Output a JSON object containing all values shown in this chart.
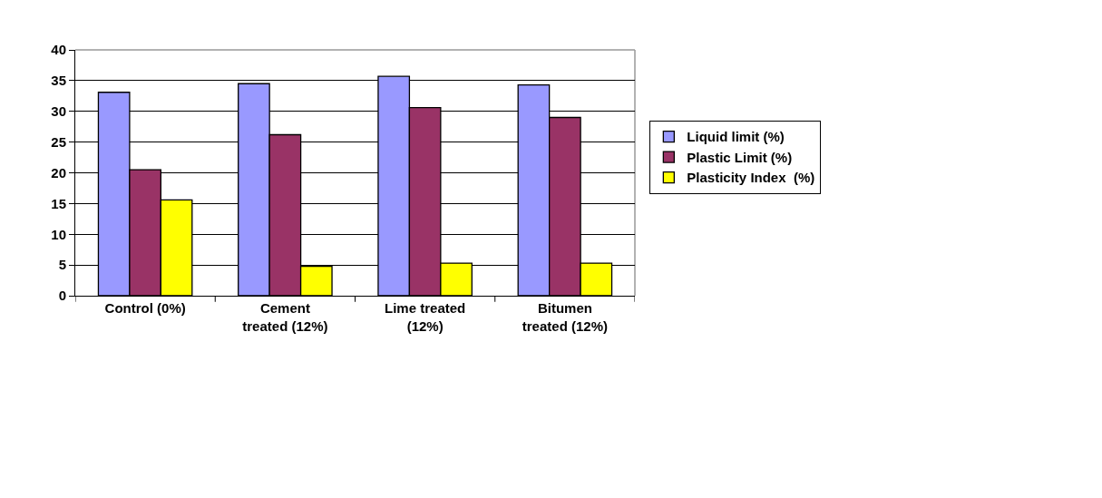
{
  "chart_data": {
    "type": "bar",
    "categories": [
      "Control (0%)",
      "Cement treated (12%)",
      "Lime treated (12%)",
      "Bitumen treated (12%)"
    ],
    "series": [
      {
        "name": "Liquid limit (%)",
        "color": "#9999ff",
        "values": [
          33.1,
          34.5,
          35.7,
          34.3
        ]
      },
      {
        "name": "Plastic Limit (%)",
        "color": "#993366",
        "values": [
          20.5,
          26.2,
          30.6,
          29.0
        ]
      },
      {
        "name": "Plasticity Index  (%)",
        "color": "#ffff00",
        "values": [
          15.6,
          4.8,
          5.3,
          5.3
        ]
      }
    ],
    "ylim": [
      0,
      40
    ],
    "yticks": [
      0,
      5,
      10,
      15,
      20,
      25,
      30,
      35,
      40
    ],
    "grid": "y",
    "legend": "right"
  }
}
